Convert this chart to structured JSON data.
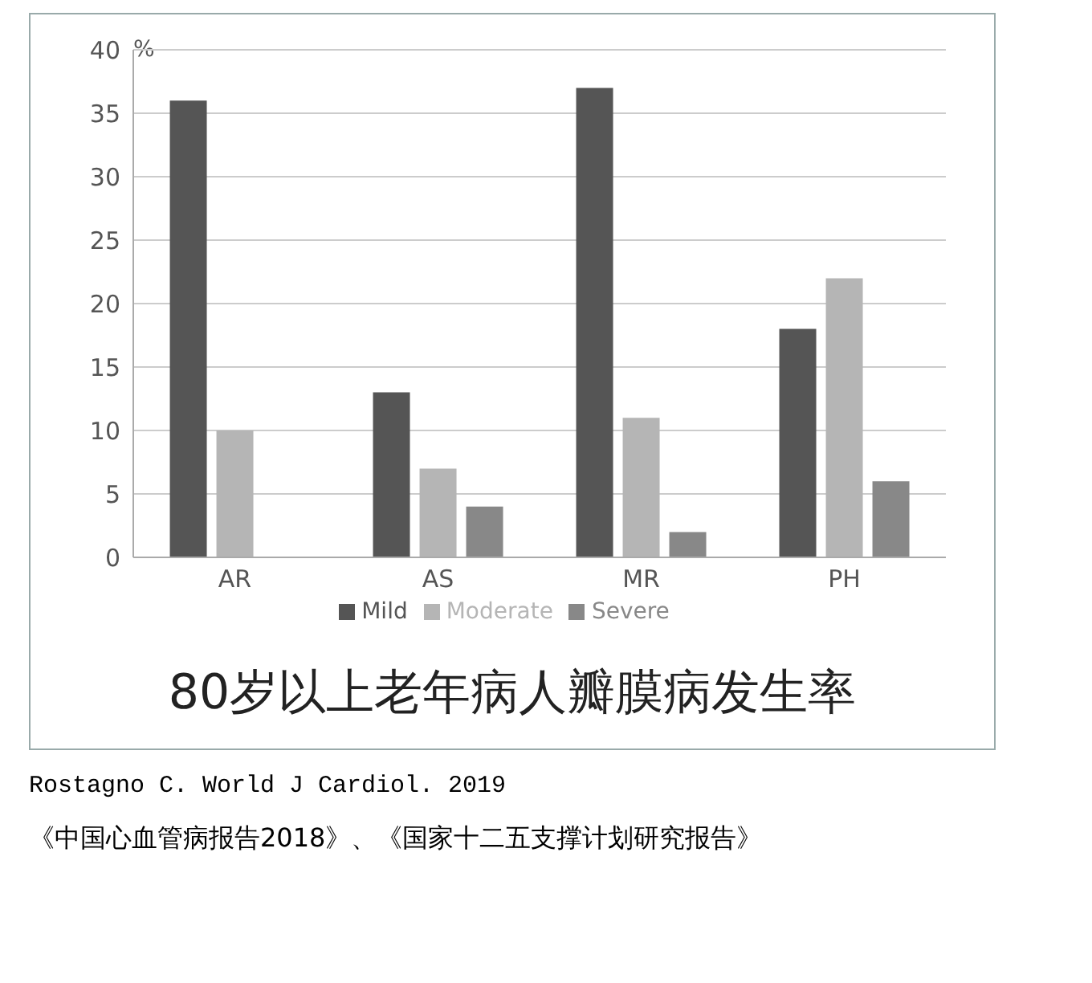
{
  "chart_data": {
    "type": "bar",
    "title": "80岁以上老年病人瓣膜病发生率",
    "ylabel": "%",
    "categories": [
      "AR",
      "AS",
      "MR",
      "PH"
    ],
    "series": [
      {
        "name": "Mild",
        "color": "#555555",
        "values": [
          36,
          13,
          37,
          18
        ]
      },
      {
        "name": "Moderate",
        "color": "#b5b5b5",
        "values": [
          10,
          7,
          11,
          22
        ]
      },
      {
        "name": "Severe",
        "color": "#888888",
        "values": [
          0,
          4,
          2,
          6
        ]
      }
    ],
    "ylim": [
      0,
      40
    ],
    "yticks": [
      0,
      5,
      10,
      15,
      20,
      25,
      30,
      35,
      40
    ],
    "grid": "y",
    "legend": "bottom",
    "annotations": [
      "Rostagno C. World J Cardiol. 2019",
      "《中国心血管病报告2018》、《国家十二五支撑计划研究报告》"
    ]
  }
}
